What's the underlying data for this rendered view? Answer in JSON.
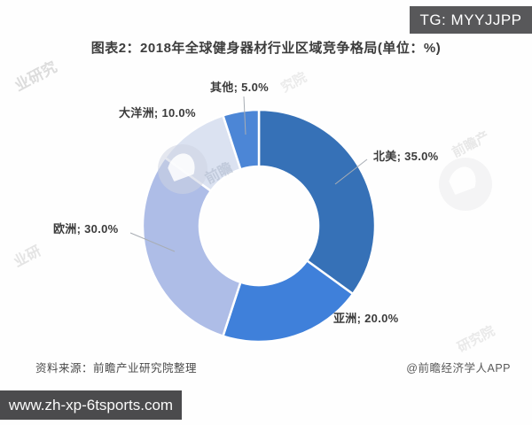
{
  "header": {
    "title": "图表2：2018年全球健身器材行业区域竞争格局(单位：%)"
  },
  "overlay": {
    "tg_badge": "TG: MYYJJPP",
    "url_bar": "www.zh-xp-6tsports.com"
  },
  "chart_data": {
    "type": "pie",
    "subtype": "donut",
    "title": "2018年全球健身器材行业区域竞争格局",
    "unit": "%",
    "start_angle_deg": 0,
    "direction": "clockwise",
    "inner_radius_ratio": 0.51,
    "legend": "none",
    "categories": [
      "北美",
      "亚洲",
      "欧洲",
      "大洋洲",
      "其他"
    ],
    "values": [
      35.0,
      20.0,
      30.0,
      10.0,
      5.0
    ],
    "colors": [
      "#3671b7",
      "#3f80da",
      "#aebde7",
      "#dbe2f1",
      "#4c86d6"
    ],
    "labels": [
      "北美; 35.0%",
      "亚洲; 20.0%",
      "欧洲; 30.0%",
      "大洋洲; 10.0%",
      "其他; 5.0%"
    ]
  },
  "footer": {
    "source": "资料来源：前瞻产业研究院整理",
    "credit": "@前瞻经济学人APP"
  },
  "watermarks": {
    "fragments": [
      "业研究",
      "究院",
      "前瞻",
      "前瞻产",
      "研究院",
      "业研"
    ]
  }
}
